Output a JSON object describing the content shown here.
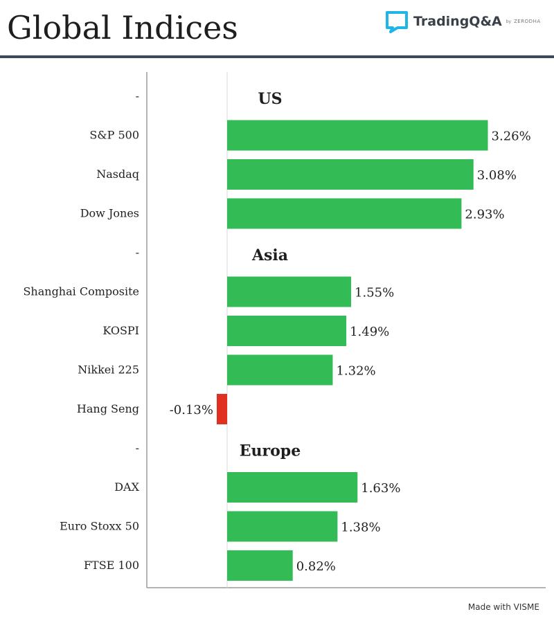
{
  "header": {
    "title": "Global Indices",
    "logo_name": "TradingQ&A",
    "logo_by": "by",
    "logo_sub": "ZERODHA"
  },
  "footer": {
    "text": "Made with VISME"
  },
  "colors": {
    "positive": "#33bb55",
    "negative": "#e03020",
    "axis": "#9a9a9a",
    "rule": "#3c4959",
    "brand": "#1fb5e6"
  },
  "chart_data": {
    "type": "bar",
    "orientation": "horizontal",
    "xlim": [
      -0.5,
      3.5
    ],
    "rows": [
      {
        "label": "-",
        "group": "US"
      },
      {
        "label": "S&P 500",
        "value": 3.26,
        "text": "3.26%"
      },
      {
        "label": "Nasdaq",
        "value": 3.08,
        "text": "3.08%"
      },
      {
        "label": "Dow Jones",
        "value": 2.93,
        "text": "2.93%"
      },
      {
        "label": "-",
        "group": "Asia"
      },
      {
        "label": "Shanghai Composite",
        "value": 1.55,
        "text": "1.55%"
      },
      {
        "label": "KOSPI",
        "value": 1.49,
        "text": "1.49%"
      },
      {
        "label": "Nikkei 225",
        "value": 1.32,
        "text": "1.32%"
      },
      {
        "label": "Hang Seng",
        "value": -0.13,
        "text": "-0.13%"
      },
      {
        "label": "-",
        "group": "Europe"
      },
      {
        "label": "DAX",
        "value": 1.63,
        "text": "1.63%"
      },
      {
        "label": "Euro Stoxx 50",
        "value": 1.38,
        "text": "1.38%"
      },
      {
        "label": "FTSE 100",
        "value": 0.82,
        "text": "0.82%"
      }
    ]
  }
}
